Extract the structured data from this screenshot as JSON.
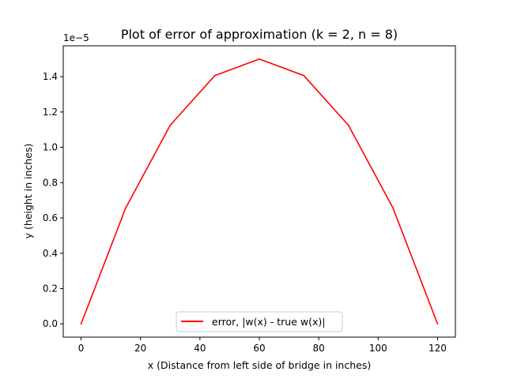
{
  "chart_data": {
    "type": "line",
    "title": "Plot of error of approximation (k = 2, n = 8)",
    "xlabel": "x (Distance from left side of bridge in inches)",
    "ylabel": "y (height in inches)",
    "y_offset_text": "1e−5",
    "xlim": [
      -6,
      126
    ],
    "ylim": [
      -0.075,
      1.575
    ],
    "x_ticks": [
      0,
      20,
      40,
      60,
      80,
      100,
      120
    ],
    "x_tick_labels": [
      "0",
      "20",
      "40",
      "60",
      "80",
      "100",
      "120"
    ],
    "y_ticks": [
      0.0,
      0.2,
      0.4,
      0.6,
      0.8,
      1.0,
      1.2,
      1.4
    ],
    "y_tick_labels": [
      "0.0",
      "0.2",
      "0.4",
      "0.6",
      "0.8",
      "1.0",
      "1.2",
      "1.4"
    ],
    "grid": false,
    "legend_position": "lower-center",
    "series": [
      {
        "name": "error, |w(x) - true w(x)|",
        "color": "#ff0000",
        "x": [
          0,
          15,
          30,
          45,
          60,
          75,
          90,
          105,
          120
        ],
        "y": [
          0.0,
          0.656,
          1.125,
          1.406,
          1.5,
          1.406,
          1.125,
          0.656,
          0.0
        ]
      }
    ]
  }
}
